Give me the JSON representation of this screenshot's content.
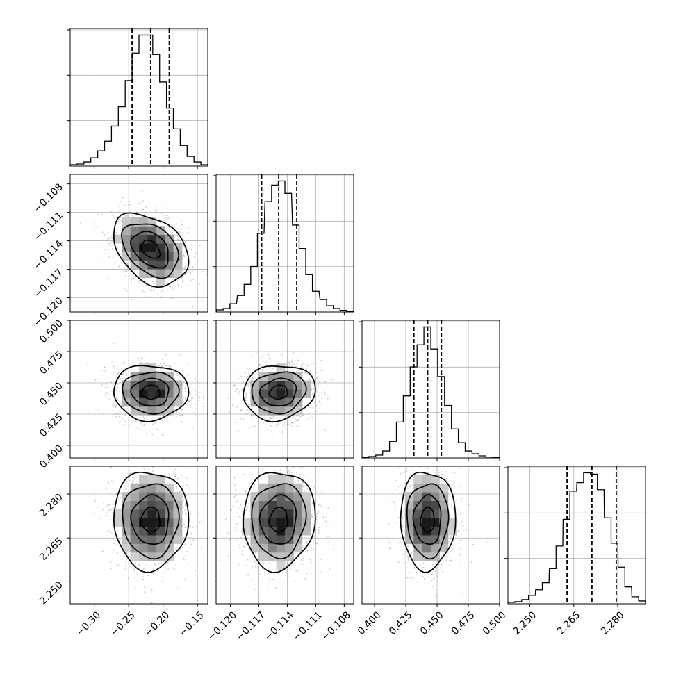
{
  "chart_data": {
    "type": "corner",
    "grid": true,
    "colors": {
      "line": "#000000",
      "background": "#ffffff",
      "grid": "#b0b0b0",
      "scatter": "#9a9a9a"
    },
    "quantile_line_style": "dashed",
    "parameters": [
      {
        "range": [
          -0.335,
          -0.135
        ],
        "ticks": [
          -0.3,
          -0.25,
          -0.2,
          -0.15
        ],
        "tick_labels": [
          "−0.30",
          "−0.25",
          "−0.20",
          "−0.15"
        ],
        "quantiles": [
          -0.245,
          -0.218,
          -0.191
        ],
        "hist": {
          "centers": [
            -0.33,
            -0.32,
            -0.31,
            -0.3,
            -0.29,
            -0.28,
            -0.27,
            -0.26,
            -0.25,
            -0.24,
            -0.23,
            -0.22,
            -0.21,
            -0.2,
            -0.19,
            -0.18,
            -0.17,
            -0.16,
            -0.15,
            -0.14
          ],
          "counts": [
            0.01,
            0.015,
            0.03,
            0.06,
            0.11,
            0.18,
            0.29,
            0.43,
            0.62,
            0.82,
            0.95,
            0.95,
            0.81,
            0.61,
            0.42,
            0.27,
            0.15,
            0.07,
            0.03,
            0.01
          ]
        }
      },
      {
        "range": [
          -0.1215,
          -0.107
        ],
        "ticks": [
          -0.12,
          -0.117,
          -0.114,
          -0.111,
          -0.108
        ],
        "tick_labels": [
          "−0.120",
          "−0.117",
          "−0.114",
          "−0.111",
          "−0.108"
        ],
        "quantiles": [
          -0.1167,
          -0.1149,
          -0.113
        ],
        "hist": {
          "centers": [
            -0.1211,
            -0.1204,
            -0.1197,
            -0.1189,
            -0.1182,
            -0.1175,
            -0.1168,
            -0.116,
            -0.1153,
            -0.1146,
            -0.1139,
            -0.1131,
            -0.1124,
            -0.1117,
            -0.111,
            -0.1102,
            -0.1095,
            -0.1088,
            -0.1081,
            -0.1074
          ],
          "counts": [
            0.015,
            0.025,
            0.06,
            0.12,
            0.2,
            0.33,
            0.57,
            0.8,
            0.92,
            0.95,
            0.86,
            0.63,
            0.46,
            0.27,
            0.15,
            0.09,
            0.045,
            0.025,
            0.012,
            0.006
          ]
        }
      },
      {
        "range": [
          0.39,
          0.5
        ],
        "ticks": [
          0.4,
          0.425,
          0.45,
          0.475,
          0.5
        ],
        "tick_labels": [
          "0.400",
          "0.425",
          "0.450",
          "0.475",
          "0.500"
        ],
        "quantiles": [
          0.4315,
          0.4425,
          0.4535
        ],
        "hist": {
          "centers": [
            0.39275,
            0.39825,
            0.40375,
            0.40925,
            0.41475,
            0.42025,
            0.42575,
            0.43125,
            0.43675,
            0.44225,
            0.44775,
            0.45325,
            0.45875,
            0.46425,
            0.46975,
            0.47525,
            0.48075,
            0.48625,
            0.49175,
            0.49725
          ],
          "counts": [
            0.005,
            0.01,
            0.02,
            0.05,
            0.12,
            0.26,
            0.45,
            0.66,
            0.82,
            0.95,
            0.79,
            0.59,
            0.38,
            0.21,
            0.11,
            0.05,
            0.03,
            0.015,
            0.007,
            0.003
          ]
        }
      },
      {
        "range": [
          2.2425,
          2.2895
        ],
        "ticks": [
          2.25,
          2.265,
          2.28
        ],
        "tick_labels": [
          "2.250",
          "2.265",
          "2.280"
        ],
        "quantiles": [
          2.2627,
          2.2712,
          2.2795
        ],
        "hist": {
          "centers": [
            2.2437,
            2.246,
            2.2484,
            2.2507,
            2.2531,
            2.2554,
            2.2578,
            2.2601,
            2.2625,
            2.2648,
            2.2672,
            2.2695,
            2.2719,
            2.2742,
            2.2766,
            2.2789,
            2.2813,
            2.2836,
            2.286,
            2.2883
          ],
          "counts": [
            0.01,
            0.015,
            0.03,
            0.06,
            0.1,
            0.15,
            0.25,
            0.41,
            0.6,
            0.8,
            0.86,
            0.93,
            0.92,
            0.81,
            0.61,
            0.43,
            0.26,
            0.12,
            0.05,
            0.02
          ]
        }
      }
    ],
    "correlations": [
      {
        "pair": [
          1,
          0
        ],
        "mean": [
          -0.218,
          -0.1149
        ],
        "sd": [
          0.0272,
          0.0019
        ],
        "rho": -0.35
      },
      {
        "pair": [
          2,
          0
        ],
        "mean": [
          -0.218,
          0.4425
        ],
        "sd": [
          0.0272,
          0.011
        ],
        "rho": 0.0
      },
      {
        "pair": [
          2,
          1
        ],
        "mean": [
          -0.1149,
          0.4425
        ],
        "sd": [
          0.0019,
          0.011
        ],
        "rho": 0.1
      },
      {
        "pair": [
          3,
          0
        ],
        "mean": [
          -0.218,
          2.2712
        ],
        "sd": [
          0.0272,
          0.0084
        ],
        "rho": 0.0
      },
      {
        "pair": [
          3,
          1
        ],
        "mean": [
          -0.1149,
          2.2712
        ],
        "sd": [
          0.0019,
          0.0084
        ],
        "rho": 0.05
      },
      {
        "pair": [
          3,
          2
        ],
        "mean": [
          0.4425,
          2.2712
        ],
        "sd": [
          0.011,
          0.0084
        ],
        "rho": 0.0
      }
    ]
  }
}
